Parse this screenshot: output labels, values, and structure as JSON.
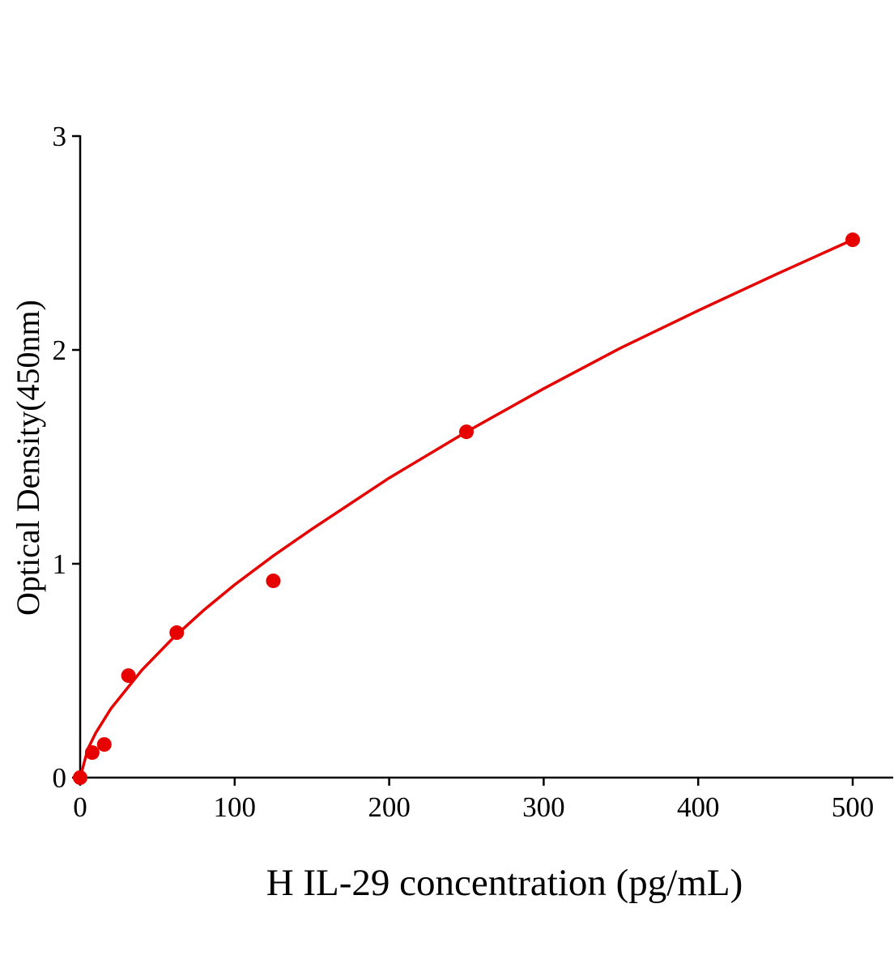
{
  "chart_data": {
    "type": "scatter",
    "title": "",
    "xlabel": "H IL-29 concentration (pg/mL)",
    "ylabel": "Optical Density(450nm)",
    "xlim": [
      0,
      525
    ],
    "ylim": [
      0,
      3
    ],
    "xticks": [
      0,
      100,
      200,
      300,
      400,
      500
    ],
    "yticks": [
      0,
      1,
      2,
      3
    ],
    "grid": false,
    "colors": {
      "series": "#e60000",
      "axis": "#000000"
    },
    "series": [
      {
        "points": [
          {
            "x": 0,
            "y": 0
          },
          {
            "x": 7.8,
            "y": 0.117
          },
          {
            "x": 15.6,
            "y": 0.155
          },
          {
            "x": 31.25,
            "y": 0.477
          },
          {
            "x": 62.5,
            "y": 0.678
          },
          {
            "x": 125,
            "y": 0.92
          },
          {
            "x": 250,
            "y": 1.617
          },
          {
            "x": 500,
            "y": 2.515
          }
        ],
        "fit_curve": [
          {
            "x": 0,
            "y": 0
          },
          {
            "x": 5,
            "y": 0.134
          },
          {
            "x": 10,
            "y": 0.208
          },
          {
            "x": 20,
            "y": 0.324
          },
          {
            "x": 40,
            "y": 0.503
          },
          {
            "x": 60,
            "y": 0.652
          },
          {
            "x": 80,
            "y": 0.783
          },
          {
            "x": 100,
            "y": 0.902
          },
          {
            "x": 125,
            "y": 1.037
          },
          {
            "x": 150,
            "y": 1.162
          },
          {
            "x": 200,
            "y": 1.401
          },
          {
            "x": 250,
            "y": 1.617
          },
          {
            "x": 300,
            "y": 1.819
          },
          {
            "x": 350,
            "y": 2.01
          },
          {
            "x": 400,
            "y": 2.184
          },
          {
            "x": 450,
            "y": 2.352
          },
          {
            "x": 500,
            "y": 2.515
          }
        ]
      }
    ]
  }
}
